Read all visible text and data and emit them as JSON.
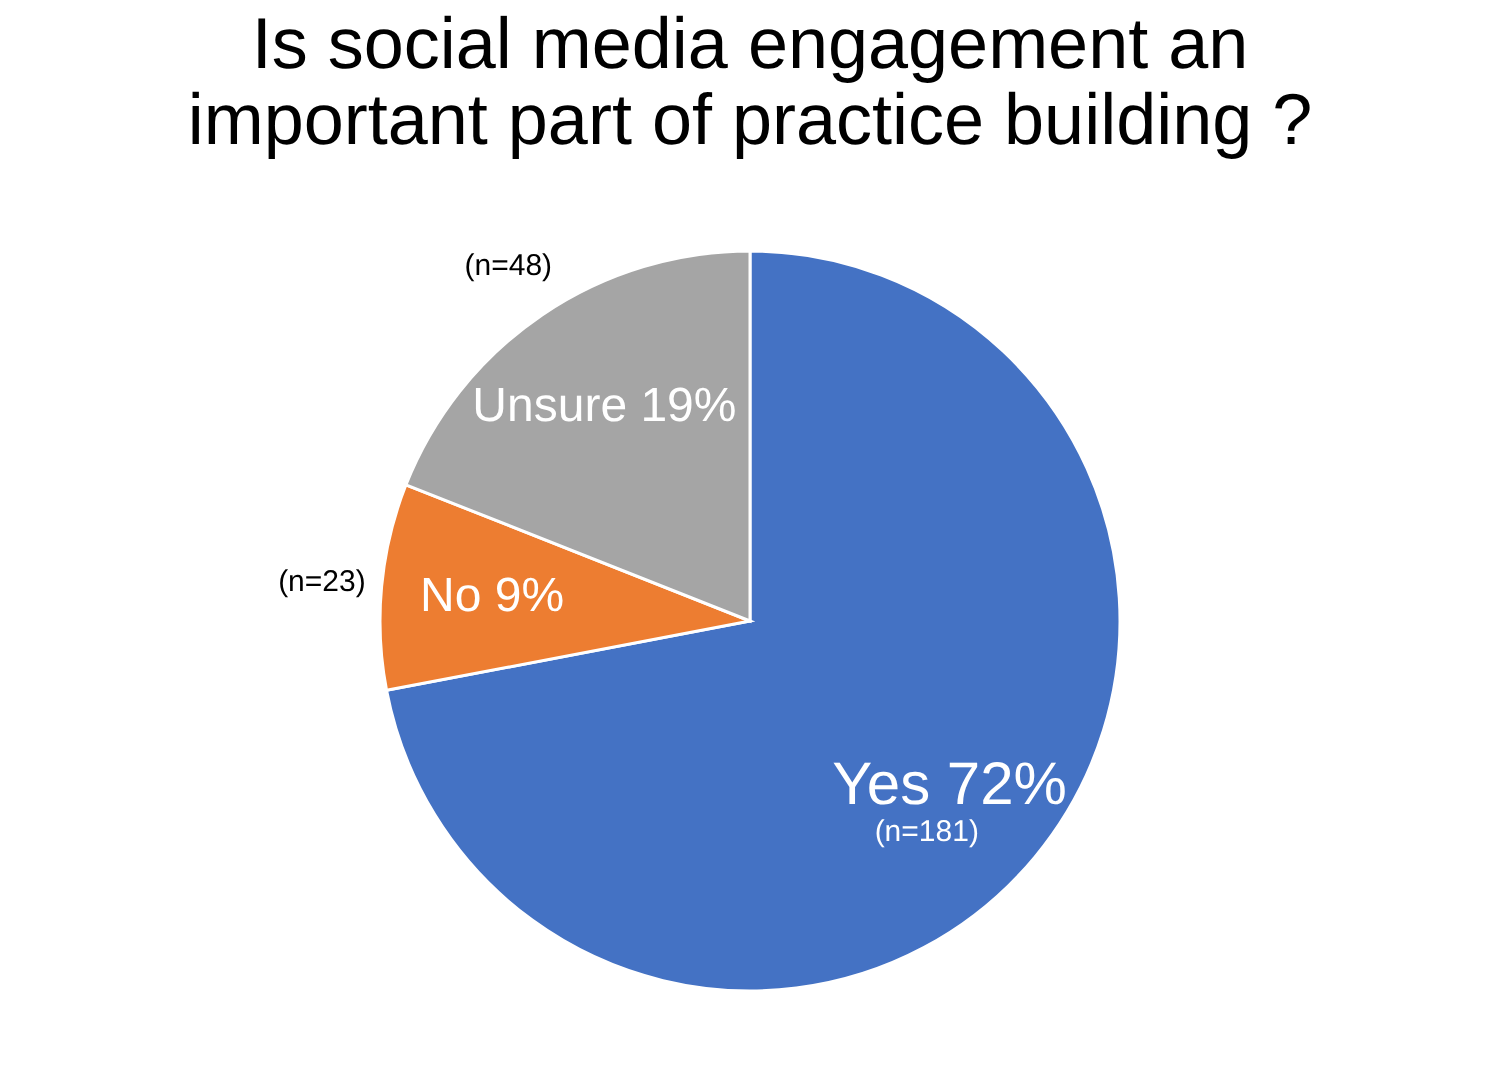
{
  "chart_data": {
    "type": "pie",
    "title": "Is social media engagement  an\nimportant part of practice building ?",
    "categories": [
      "Yes",
      "No",
      "Unsure"
    ],
    "values": [
      72,
      9,
      19
    ],
    "value_labels": [
      "72%",
      "9%",
      "19%"
    ],
    "colors": [
      "#4472c4",
      "#ed7d31",
      "#a5a5a5"
    ],
    "annotations": [
      "(n=181)",
      "(n=23)",
      "(n=48)"
    ],
    "legend": false
  }
}
